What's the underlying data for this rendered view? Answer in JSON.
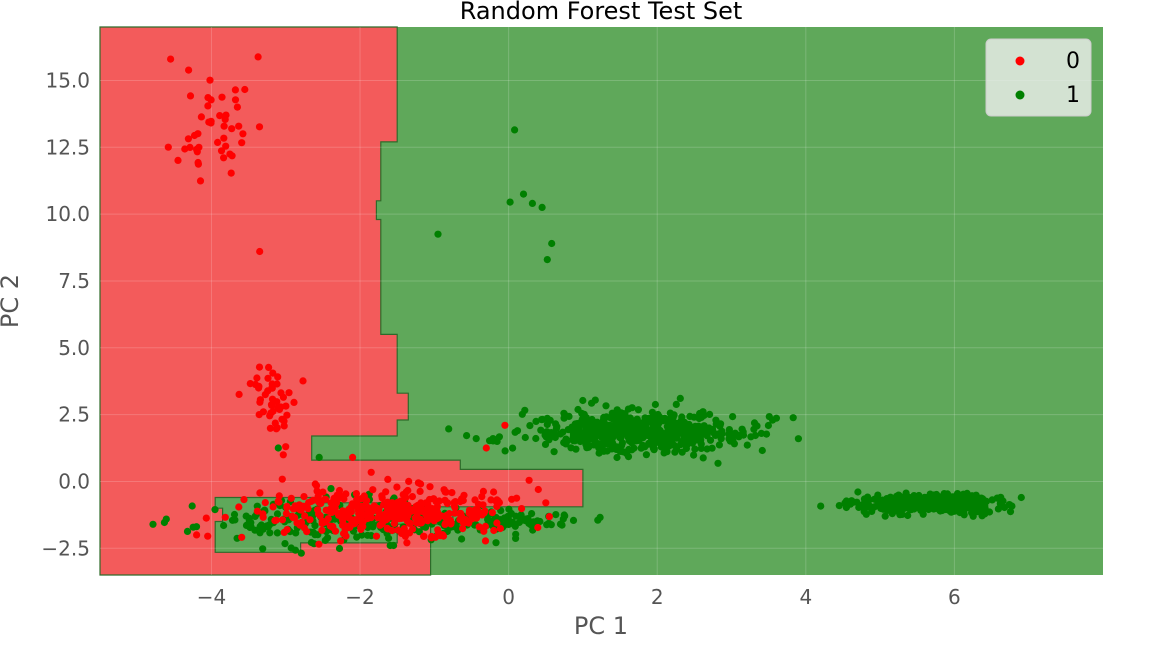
{
  "chart_data": {
    "type": "scatter",
    "title": "Random Forest Test Set",
    "xlabel": "PC 1",
    "ylabel": "PC 2",
    "xlim": [
      -5.5,
      8.0
    ],
    "ylim": [
      -3.5,
      17.0
    ],
    "xticks": [
      -4,
      -2,
      0,
      2,
      4,
      6
    ],
    "xtick_labels": [
      "−4",
      "−2",
      "0",
      "2",
      "4",
      "6"
    ],
    "yticks": [
      -2.5,
      0.0,
      2.5,
      5.0,
      7.5,
      10.0,
      12.5,
      15.0
    ],
    "ytick_labels": [
      "−2.5",
      "0.0",
      "2.5",
      "5.0",
      "7.5",
      "10.0",
      "12.5",
      "15.0"
    ],
    "grid": true,
    "legend_position": "top-right",
    "colors": {
      "class0_point": "#ff0000",
      "class1_point": "#008000",
      "region0": "#f35b5b",
      "region1": "#5fa85a",
      "region_edge": "#2e6b2a"
    },
    "decision_regions": {
      "class0": [
        [
          -5.5,
          17.0
        ],
        [
          -1.5,
          17.0
        ],
        [
          -1.5,
          12.7
        ],
        [
          -1.72,
          12.7
        ],
        [
          -1.72,
          10.5
        ],
        [
          -1.78,
          10.5
        ],
        [
          -1.78,
          9.8
        ],
        [
          -1.72,
          9.8
        ],
        [
          -1.72,
          5.5
        ],
        [
          -1.5,
          5.5
        ],
        [
          -1.5,
          3.3
        ],
        [
          -1.35,
          3.3
        ],
        [
          -1.35,
          2.3
        ],
        [
          -1.5,
          2.3
        ],
        [
          -1.5,
          1.7
        ],
        [
          -2.65,
          1.7
        ],
        [
          -2.65,
          0.8
        ],
        [
          -0.65,
          0.8
        ],
        [
          -0.65,
          0.45
        ],
        [
          1.0,
          0.45
        ],
        [
          1.0,
          -0.95
        ],
        [
          -1.05,
          -0.95
        ],
        [
          -1.05,
          -3.5
        ],
        [
          -5.5,
          -3.5
        ]
      ],
      "class1_islands": [
        [
          [
            -3.95,
            -0.6
          ],
          [
            -2.6,
            -0.6
          ],
          [
            -2.6,
            -0.8
          ],
          [
            -1.5,
            -0.8
          ],
          [
            -1.5,
            -1.2
          ],
          [
            -0.75,
            -1.2
          ],
          [
            -0.75,
            -1.6
          ],
          [
            -1.5,
            -1.6
          ],
          [
            -1.5,
            -2.3
          ],
          [
            -2.8,
            -2.3
          ],
          [
            -2.8,
            -2.65
          ],
          [
            -3.95,
            -2.65
          ],
          [
            -3.95,
            -1.5
          ],
          [
            -3.85,
            -1.5
          ],
          [
            -3.85,
            -1.0
          ],
          [
            -3.95,
            -1.0
          ]
        ]
      ]
    },
    "series": [
      {
        "name": "0",
        "color": "#ff0000",
        "clusters": [
          {
            "cx": -3.95,
            "cy": 13.4,
            "sx": 0.25,
            "sy": 1.25,
            "n": 46,
            "seed": 11
          },
          {
            "cx": -3.15,
            "cy": 3.0,
            "sx": 0.18,
            "sy": 0.65,
            "n": 46,
            "seed": 12
          },
          {
            "cx": -1.6,
            "cy": -1.15,
            "sx": 0.85,
            "sy": 0.45,
            "n": 380,
            "seed": 13
          }
        ],
        "points": [
          {
            "x": -3.35,
            "y": 8.6
          },
          {
            "x": -4.2,
            "y": -2.0
          },
          {
            "x": -4.05,
            "y": -2.05
          },
          {
            "x": -2.1,
            "y": 0.9
          },
          {
            "x": -0.3,
            "y": 1.25
          },
          {
            "x": 0.4,
            "y": -0.3
          },
          {
            "x": 0.5,
            "y": -0.8
          },
          {
            "x": -0.05,
            "y": 2.1
          },
          {
            "x": -3.0,
            "y": 1.3
          },
          {
            "x": -4.55,
            "y": 15.8
          }
        ]
      },
      {
        "name": "1",
        "color": "#008000",
        "clusters": [
          {
            "cx": 1.75,
            "cy": 1.85,
            "sx": 0.75,
            "sy": 0.38,
            "n": 560,
            "seed": 21
          },
          {
            "cx": 5.7,
            "cy": -0.85,
            "sx": 0.42,
            "sy": 0.16,
            "n": 520,
            "seed": 22
          },
          {
            "cx": -2.35,
            "cy": -1.5,
            "sx": 0.9,
            "sy": 0.4,
            "n": 210,
            "seed": 23
          },
          {
            "cx": -0.15,
            "cy": -1.55,
            "sx": 0.45,
            "sy": 0.25,
            "n": 90,
            "seed": 24
          }
        ],
        "points": [
          {
            "x": 0.08,
            "y": 13.15
          },
          {
            "x": 0.02,
            "y": 10.45
          },
          {
            "x": 0.2,
            "y": 10.75
          },
          {
            "x": 0.32,
            "y": 10.4
          },
          {
            "x": 0.45,
            "y": 10.25
          },
          {
            "x": 0.58,
            "y": 8.9
          },
          {
            "x": 0.52,
            "y": 8.3
          },
          {
            "x": -0.95,
            "y": 9.25
          },
          {
            "x": 1.2,
            "y": -1.45
          },
          {
            "x": 3.9,
            "y": 1.6
          },
          {
            "x": -2.55,
            "y": 0.9
          },
          {
            "x": -3.1,
            "y": 1.25
          },
          {
            "x": 6.9,
            "y": -0.6
          },
          {
            "x": 4.6,
            "y": -0.85
          }
        ]
      }
    ]
  }
}
